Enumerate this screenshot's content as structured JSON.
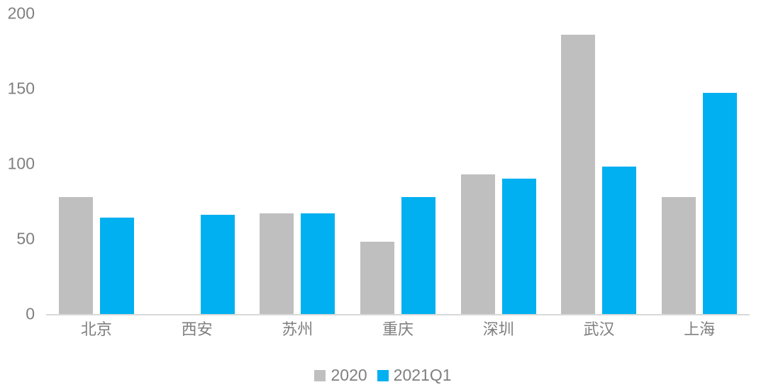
{
  "chart_data": {
    "type": "bar",
    "title": "",
    "xlabel": "",
    "ylabel": "",
    "categories": [
      "北京",
      "西安",
      "苏州",
      "重庆",
      "深圳",
      "武汉",
      "上海"
    ],
    "series": [
      {
        "name": "2020",
        "color": "#bfbfbf",
        "values": [
          78,
          0,
          67,
          48,
          93,
          186,
          78
        ]
      },
      {
        "name": "2021Q1",
        "color": "#00b0f0",
        "values": [
          64,
          66,
          67,
          78,
          90,
          98,
          147
        ]
      }
    ],
    "ylim": [
      0,
      200
    ],
    "yticks": [
      0,
      50,
      100,
      150,
      200
    ],
    "grid": false,
    "legend_position": "bottom"
  },
  "colors": {
    "series_2020": "#bfbfbf",
    "series_2021q1": "#00b0f0",
    "axis_line": "#d9d9d9",
    "tick_label": "#7f7f7f",
    "background": "#ffffff"
  },
  "legend": {
    "items": [
      {
        "label": "2020",
        "color": "#bfbfbf"
      },
      {
        "label": "2021Q1",
        "color": "#00b0f0"
      }
    ]
  }
}
